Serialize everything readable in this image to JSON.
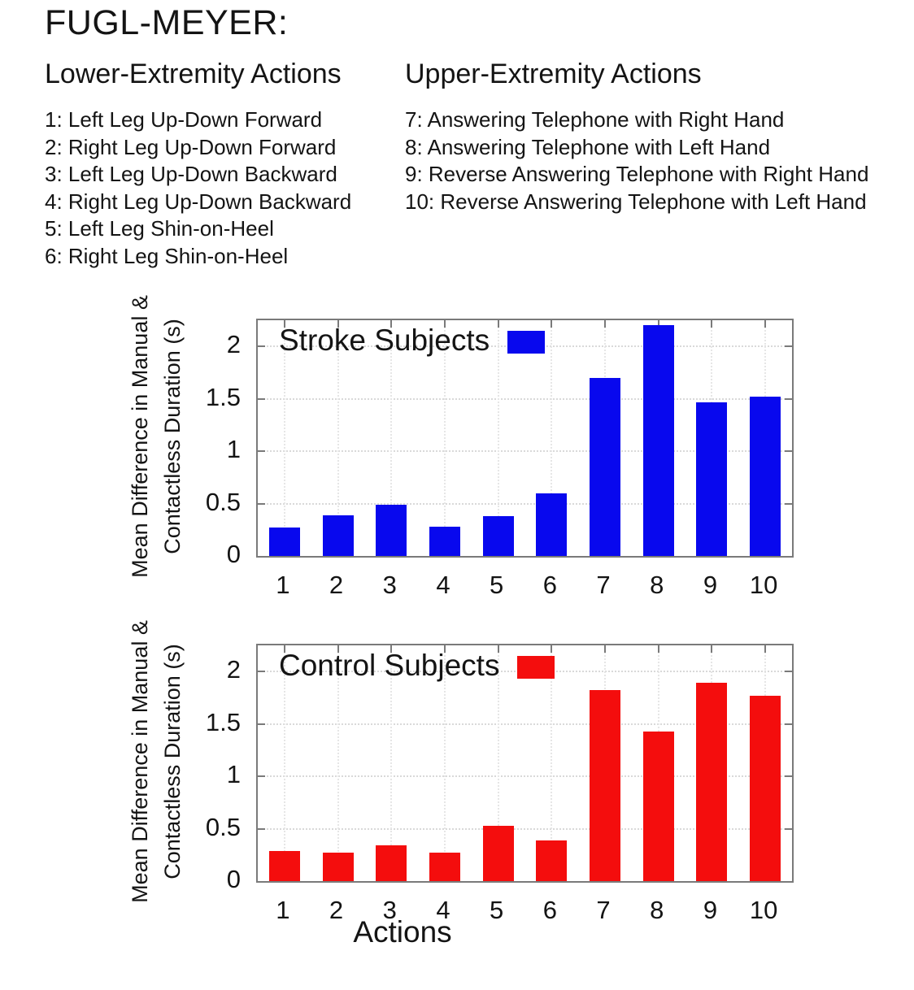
{
  "header": {
    "title": "FUGL-MEYER:"
  },
  "lower_extremity": {
    "heading": "Lower-Extremity Actions",
    "items": [
      "1: Left Leg Up-Down Forward",
      "2: Right Leg Up-Down Forward",
      "3: Left Leg Up-Down Backward",
      "4: Right Leg Up-Down Backward",
      "5: Left Leg Shin-on-Heel",
      "6: Right Leg Shin-on-Heel"
    ]
  },
  "upper_extremity": {
    "heading": "Upper-Extremity Actions",
    "items": [
      "7: Answering Telephone with Right Hand",
      "8: Answering Telephone with Left Hand",
      "9: Reverse Answering Telephone with Right Hand",
      "10: Reverse Answering Telephone with Left Hand"
    ]
  },
  "chart_data": [
    {
      "type": "bar",
      "legend": "Stroke Subjects",
      "bar_color": "#0808ee",
      "categories": [
        "1",
        "2",
        "3",
        "4",
        "5",
        "6",
        "7",
        "8",
        "9",
        "10"
      ],
      "values": [
        0.27,
        0.39,
        0.49,
        0.28,
        0.38,
        0.6,
        1.7,
        2.2,
        1.47,
        1.52
      ],
      "ylabel_lines": [
        "Mean Difference in Manual &",
        "Contactless Duration (s)"
      ],
      "yticks": [
        0,
        0.5,
        1,
        1.5,
        2
      ],
      "ylim": [
        0,
        2.25
      ],
      "xlabel": "",
      "grid": "dotted"
    },
    {
      "type": "bar",
      "legend": "Control Subjects",
      "bar_color": "#f40d0d",
      "categories": [
        "1",
        "2",
        "3",
        "4",
        "5",
        "6",
        "7",
        "8",
        "9",
        "10"
      ],
      "values": [
        0.29,
        0.27,
        0.34,
        0.27,
        0.53,
        0.39,
        1.82,
        1.43,
        1.89,
        1.77
      ],
      "ylabel_lines": [
        "Mean Difference in Manual &",
        "Contactless Duration (s)"
      ],
      "yticks": [
        0,
        0.5,
        1,
        1.5,
        2
      ],
      "ylim": [
        0,
        2.25
      ],
      "xlabel": "Actions",
      "grid": "dotted"
    }
  ]
}
